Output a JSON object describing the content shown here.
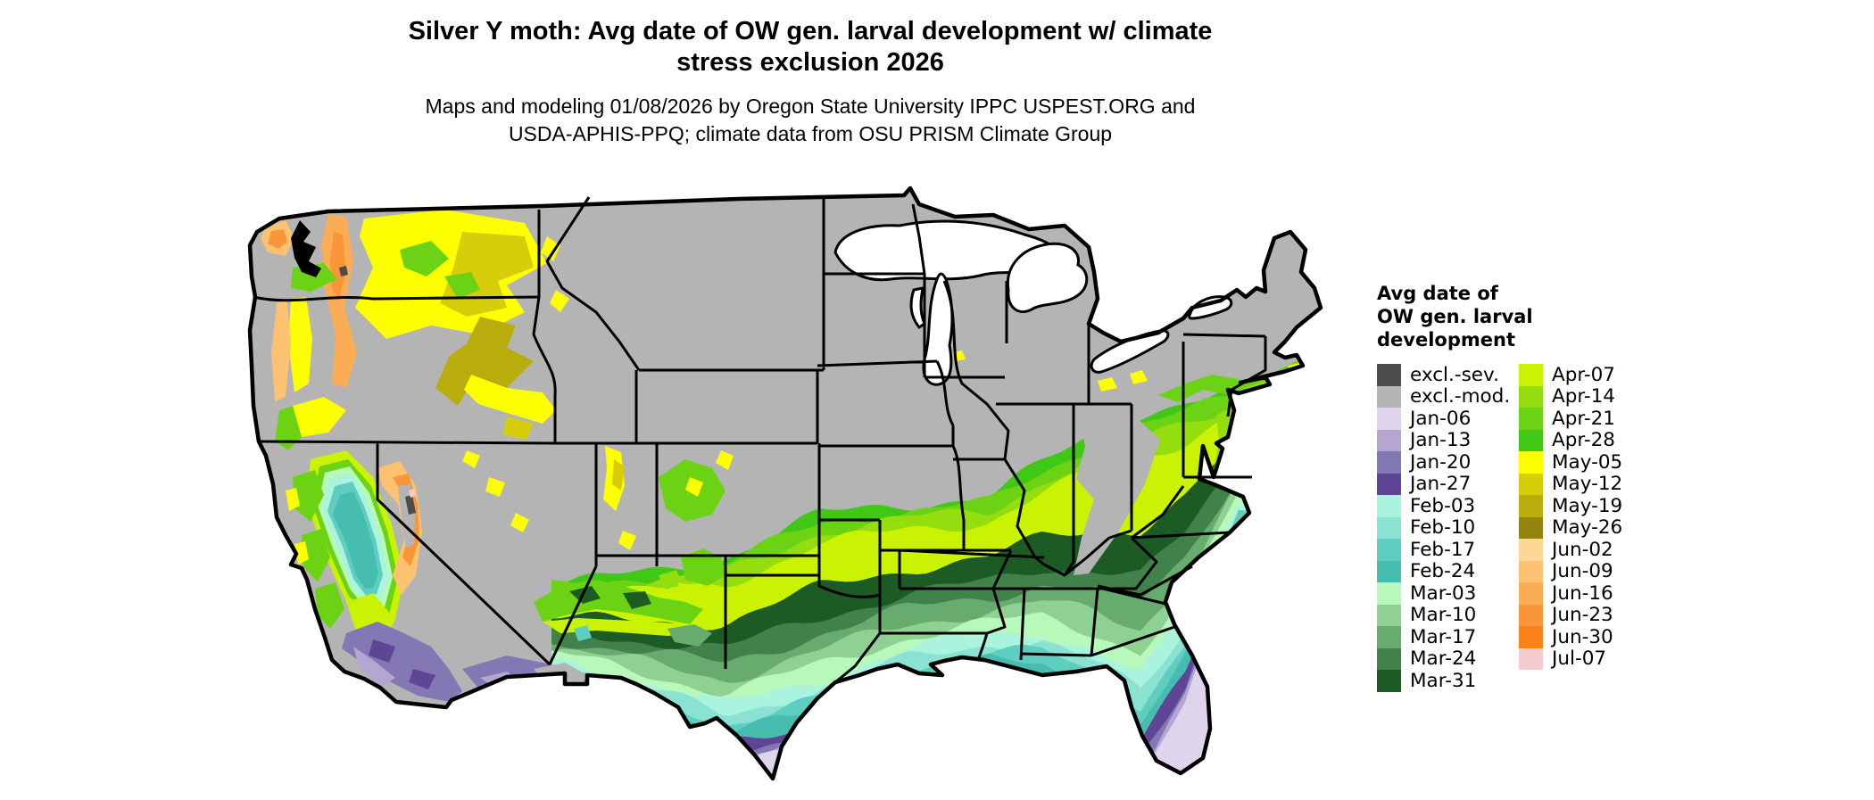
{
  "title": {
    "line1": "Silver Y moth: Avg date of OW gen. larval development w/ climate",
    "line2": "stress exclusion 2026"
  },
  "subtitle": {
    "line1": "Maps and modeling 01/08/2026 by Oregon State University IPPC USPEST.ORG and",
    "line2": "USDA-APHIS-PPQ; climate data from OSU PRISM Climate Group"
  },
  "legend": {
    "title_lines": [
      "Avg date of",
      "OW gen. larval",
      "development"
    ],
    "left_column": [
      {
        "label": "excl.-sev.",
        "color": "#4d4d4d"
      },
      {
        "label": "excl.-mod.",
        "color": "#b4b4b4"
      },
      {
        "label": "Jan-06",
        "color": "#ded5ec"
      },
      {
        "label": "Jan-13",
        "color": "#b4a5d3"
      },
      {
        "label": "Jan-20",
        "color": "#8478b4"
      },
      {
        "label": "Jan-27",
        "color": "#5f4596"
      },
      {
        "label": "Feb-03",
        "color": "#aaf3de"
      },
      {
        "label": "Feb-10",
        "color": "#8ae3d2"
      },
      {
        "label": "Feb-17",
        "color": "#60cdc1"
      },
      {
        "label": "Feb-24",
        "color": "#47bdb0"
      },
      {
        "label": "Mar-03",
        "color": "#b8f8ba"
      },
      {
        "label": "Mar-10",
        "color": "#8ed193"
      },
      {
        "label": "Mar-17",
        "color": "#68ab6e"
      },
      {
        "label": "Mar-24",
        "color": "#41824a"
      },
      {
        "label": "Mar-31",
        "color": "#1c5b24"
      }
    ],
    "right_column": [
      {
        "label": "Apr-07",
        "color": "#c9f303"
      },
      {
        "label": "Apr-14",
        "color": "#94dd0e"
      },
      {
        "label": "Apr-21",
        "color": "#6bd313"
      },
      {
        "label": "Apr-28",
        "color": "#3fc814"
      },
      {
        "label": "May-05",
        "color": "#fdfe00"
      },
      {
        "label": "May-12",
        "color": "#d7cd0a"
      },
      {
        "label": "May-19",
        "color": "#b9ad0e"
      },
      {
        "label": "May-26",
        "color": "#948410"
      },
      {
        "label": "Jun-02",
        "color": "#fdd894"
      },
      {
        "label": "Jun-09",
        "color": "#fcc271"
      },
      {
        "label": "Jun-16",
        "color": "#fbad55"
      },
      {
        "label": "Jun-23",
        "color": "#fa963a"
      },
      {
        "label": "Jun-30",
        "color": "#fa8117"
      },
      {
        "label": "Jul-07",
        "color": "#f4cccf"
      }
    ]
  },
  "map": {
    "region": "Continental United States",
    "background_color": "#b4b4b4",
    "border_color": "#000000",
    "water_color": "#ffffff",
    "band_order_north_to_south": [
      "excl.-mod.",
      "Apr-28",
      "Apr-21",
      "Apr-14",
      "Apr-07",
      "Mar-31",
      "Mar-24",
      "Mar-17",
      "Mar-10",
      "Mar-03",
      "Feb-03",
      "Feb-10",
      "Feb-17",
      "Feb-24",
      "Jan-27",
      "Jan-20",
      "Jan-13",
      "Jan-06"
    ]
  }
}
